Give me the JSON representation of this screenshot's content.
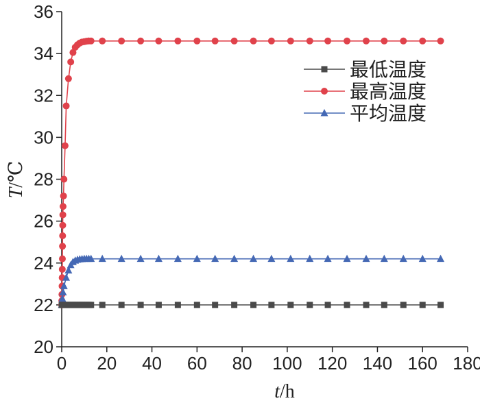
{
  "chart_data": {
    "type": "line",
    "xlabel_italic": "t",
    "xlabel_unit": "/h",
    "ylabel_italic": "T",
    "ylabel_unit": "/℃",
    "xlim": [
      0,
      180
    ],
    "ylim": [
      20,
      36
    ],
    "xticks": [
      0,
      20,
      40,
      60,
      80,
      100,
      120,
      140,
      160,
      180
    ],
    "yticks": [
      20,
      22,
      24,
      26,
      28,
      30,
      32,
      34,
      36
    ],
    "grid": false,
    "legend_position": "top-right",
    "series": [
      {
        "name": "最低温度",
        "color": "#4a4a4a",
        "marker": "square",
        "x": [
          0,
          0.5,
          1,
          1.5,
          2,
          2.5,
          3,
          3.5,
          4,
          4.5,
          5,
          5.5,
          6,
          6.5,
          7,
          7.5,
          8,
          8.5,
          9,
          9.5,
          10,
          10.5,
          11,
          11.5,
          12,
          12.5,
          13,
          18,
          26.5,
          35,
          43,
          51.5,
          60,
          68,
          76.5,
          85,
          93,
          101.5,
          110,
          118,
          126.5,
          135,
          143,
          151.5,
          160,
          168
        ],
        "y": [
          22,
          22,
          22,
          22,
          22,
          22,
          22,
          22,
          22,
          22,
          22,
          22,
          22,
          22,
          22,
          22,
          22,
          22,
          22,
          22,
          22,
          22,
          22,
          22,
          22,
          22,
          22,
          22,
          22,
          22,
          22,
          22,
          22,
          22,
          22,
          22,
          22,
          22,
          22,
          22,
          22,
          22,
          22,
          22,
          22,
          22
        ]
      },
      {
        "name": "最高温度",
        "color": "#e0424b",
        "marker": "circle",
        "x": [
          0,
          0.05,
          0.1,
          0.15,
          0.2,
          0.25,
          0.3,
          0.35,
          0.4,
          0.45,
          0.5,
          0.6,
          0.8,
          1.0,
          1.5,
          2,
          3,
          4,
          5,
          6,
          7,
          8,
          9,
          10,
          11,
          12,
          13,
          18,
          26.5,
          35,
          43,
          51.5,
          60,
          68,
          76.5,
          85,
          93,
          101.5,
          110,
          118,
          126.5,
          135,
          143,
          151.5,
          160,
          168
        ],
        "y": [
          22.0,
          22.2,
          22.5,
          22.9,
          23.3,
          23.7,
          24.2,
          24.8,
          25.3,
          25.8,
          26.3,
          26.7,
          27.2,
          28.0,
          29.6,
          31.5,
          32.8,
          33.6,
          34.05,
          34.3,
          34.42,
          34.5,
          34.55,
          34.57,
          34.59,
          34.6,
          34.6,
          34.6,
          34.6,
          34.6,
          34.6,
          34.6,
          34.6,
          34.6,
          34.6,
          34.6,
          34.6,
          34.6,
          34.6,
          34.6,
          34.6,
          34.6,
          34.6,
          34.6,
          34.6,
          34.6
        ]
      },
      {
        "name": "平均温度",
        "color": "#4468b4",
        "marker": "triangle",
        "x": [
          0,
          0.3,
          0.6,
          1.0,
          2,
          3,
          4,
          5,
          6,
          7,
          8,
          9,
          10,
          11,
          12,
          13,
          18,
          26.5,
          35,
          43,
          51.5,
          60,
          68,
          76.5,
          85,
          93,
          101.5,
          110,
          118,
          126.5,
          135,
          143,
          151.5,
          160,
          168
        ],
        "y": [
          22.0,
          22.3,
          22.6,
          22.9,
          23.3,
          23.65,
          23.9,
          24.05,
          24.12,
          24.16,
          24.18,
          24.19,
          24.2,
          24.2,
          24.2,
          24.2,
          24.2,
          24.2,
          24.2,
          24.2,
          24.2,
          24.2,
          24.2,
          24.2,
          24.2,
          24.2,
          24.2,
          24.2,
          24.2,
          24.2,
          24.2,
          24.2,
          24.2,
          24.2,
          24.2
        ]
      }
    ]
  }
}
